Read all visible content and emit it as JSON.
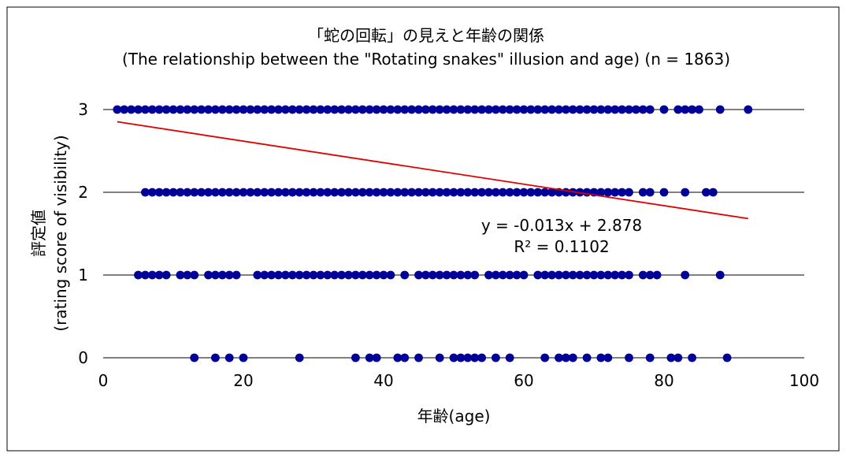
{
  "chart_data": {
    "type": "scatter",
    "title": "「蛇の回転」の見えと年齢の関係",
    "subtitle": "(The relationship between the \"Rotating snakes\" illusion and age) (n = 1863)",
    "xlabel": "年齢(age)",
    "ylabel_line1": "評定値",
    "ylabel_line2": "(rating score of visibility)",
    "xlim": [
      0,
      100
    ],
    "ylim": [
      0,
      3
    ],
    "x_ticks": [
      "0",
      "20",
      "40",
      "60",
      "80",
      "100"
    ],
    "y_ticks": [
      "0",
      "1",
      "2",
      "3"
    ],
    "grid": "horizontal",
    "point_color": "#000099",
    "trend_color": "#e00000",
    "trendline": {
      "slope": -0.013,
      "intercept": 2.878,
      "x_range": [
        2,
        92
      ],
      "equation": "y = -0.013x + 2.878",
      "r_squared": "R² = 0.1102"
    },
    "points": [
      {
        "y": 3,
        "x": [
          2,
          3,
          4,
          5,
          6,
          7,
          8,
          9,
          10,
          11,
          12,
          13,
          14,
          15,
          16,
          17,
          18,
          19,
          20,
          21,
          22,
          23,
          24,
          25,
          26,
          27,
          28,
          29,
          30,
          31,
          32,
          33,
          34,
          35,
          36,
          37,
          38,
          39,
          40,
          41,
          42,
          43,
          44,
          45,
          46,
          47,
          48,
          49,
          50,
          51,
          52,
          53,
          54,
          55,
          56,
          57,
          58,
          59,
          60,
          61,
          62,
          63,
          64,
          65,
          66,
          67,
          68,
          69,
          70,
          71,
          72,
          73,
          74,
          75,
          76,
          77,
          78,
          80,
          82,
          83,
          84,
          85,
          88,
          92
        ]
      },
      {
        "y": 2,
        "x": [
          6,
          7,
          8,
          9,
          10,
          11,
          12,
          13,
          14,
          15,
          16,
          17,
          18,
          19,
          20,
          21,
          22,
          23,
          24,
          25,
          26,
          27,
          28,
          29,
          30,
          31,
          32,
          33,
          34,
          35,
          36,
          37,
          38,
          39,
          40,
          41,
          42,
          43,
          44,
          45,
          46,
          47,
          48,
          49,
          50,
          51,
          52,
          53,
          54,
          55,
          56,
          57,
          58,
          59,
          60,
          61,
          62,
          63,
          64,
          65,
          66,
          67,
          68,
          69,
          70,
          71,
          72,
          73,
          74,
          75,
          77,
          78,
          80,
          83,
          86,
          87
        ]
      },
      {
        "y": 1,
        "x": [
          5,
          6,
          7,
          8,
          9,
          11,
          12,
          13,
          15,
          16,
          17,
          18,
          19,
          22,
          23,
          24,
          25,
          26,
          27,
          28,
          29,
          30,
          31,
          32,
          33,
          34,
          35,
          36,
          37,
          38,
          39,
          40,
          41,
          43,
          45,
          46,
          47,
          48,
          49,
          50,
          51,
          52,
          53,
          55,
          56,
          57,
          58,
          59,
          60,
          62,
          63,
          64,
          65,
          66,
          67,
          68,
          69,
          70,
          71,
          72,
          73,
          74,
          75,
          77,
          78,
          79,
          83,
          88
        ]
      },
      {
        "y": 0,
        "x": [
          13,
          16,
          18,
          20,
          28,
          36,
          38,
          39,
          42,
          43,
          45,
          48,
          50,
          51,
          52,
          53,
          54,
          56,
          58,
          63,
          65,
          66,
          67,
          69,
          71,
          72,
          75,
          78,
          81,
          82,
          84,
          89
        ]
      }
    ]
  }
}
